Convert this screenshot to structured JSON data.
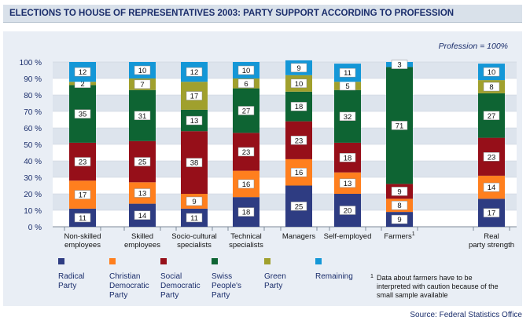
{
  "title": "ELECTIONS TO HOUSE OF REPRESENTATIVES 2003: PARTY SUPPORT ACCORDING TO PROFESSION",
  "note_top": "Profession = 100%",
  "source": "Source: Federal Statistics Office",
  "footnote": {
    "marker": "1",
    "lines": [
      "Data about farmers have to be",
      "interpreted with caution because of the",
      "small sample available"
    ]
  },
  "colors": {
    "radical": "#2e3c82",
    "christian": "#ff7f1e",
    "social": "#960f19",
    "swiss": "#0e6433",
    "green": "#a0a02d",
    "remaining": "#1497d7"
  },
  "chart_data": {
    "type": "bar",
    "stacked": true,
    "ylim": [
      0,
      100
    ],
    "yticks": [
      "0 %",
      "10 %",
      "20 %",
      "30 %",
      "40 %",
      "50 %",
      "60 %",
      "70 %",
      "80 %",
      "90 %",
      "100 %"
    ],
    "categories": [
      {
        "label": [
          "Non-skilled",
          "employees"
        ],
        "sup": ""
      },
      {
        "label": [
          "Skilled",
          "employees"
        ],
        "sup": ""
      },
      {
        "label": [
          "Socio-cultural",
          "specialists"
        ],
        "sup": ""
      },
      {
        "label": [
          "Technical",
          "specialists"
        ],
        "sup": ""
      },
      {
        "label": [
          "Managers"
        ],
        "sup": ""
      },
      {
        "label": [
          "Self-employed"
        ],
        "sup": ""
      },
      {
        "label": [
          "Farmers"
        ],
        "sup": "1"
      },
      {
        "label": [
          "Real",
          "party strength"
        ],
        "sup": ""
      }
    ],
    "series": [
      {
        "key": "radical",
        "name": "Radical Party",
        "legend": [
          "Radical",
          "Party"
        ],
        "values": [
          11,
          14,
          11,
          18,
          25,
          20,
          9,
          17
        ]
      },
      {
        "key": "christian",
        "name": "Christian Democratic Party",
        "legend": [
          "Christian",
          "Democratic",
          "Party"
        ],
        "values": [
          17,
          13,
          9,
          16,
          16,
          13,
          8,
          14
        ]
      },
      {
        "key": "social",
        "name": "Social Democratic Party",
        "legend": [
          "Social",
          "Democratic",
          "Party"
        ],
        "values": [
          23,
          25,
          38,
          23,
          23,
          18,
          9,
          23
        ]
      },
      {
        "key": "swiss",
        "name": "Swiss People's Party",
        "legend": [
          "Swiss",
          "People's",
          "Party"
        ],
        "values": [
          35,
          31,
          13,
          27,
          18,
          32,
          71,
          27
        ]
      },
      {
        "key": "green",
        "name": "Green Party",
        "legend": [
          "Green",
          "Party"
        ],
        "values": [
          2,
          7,
          17,
          6,
          10,
          5,
          0,
          8
        ]
      },
      {
        "key": "remaining",
        "name": "Remaining",
        "legend": [
          "Remaining"
        ],
        "values": [
          12,
          10,
          12,
          10,
          9,
          11,
          3,
          10
        ]
      }
    ]
  }
}
